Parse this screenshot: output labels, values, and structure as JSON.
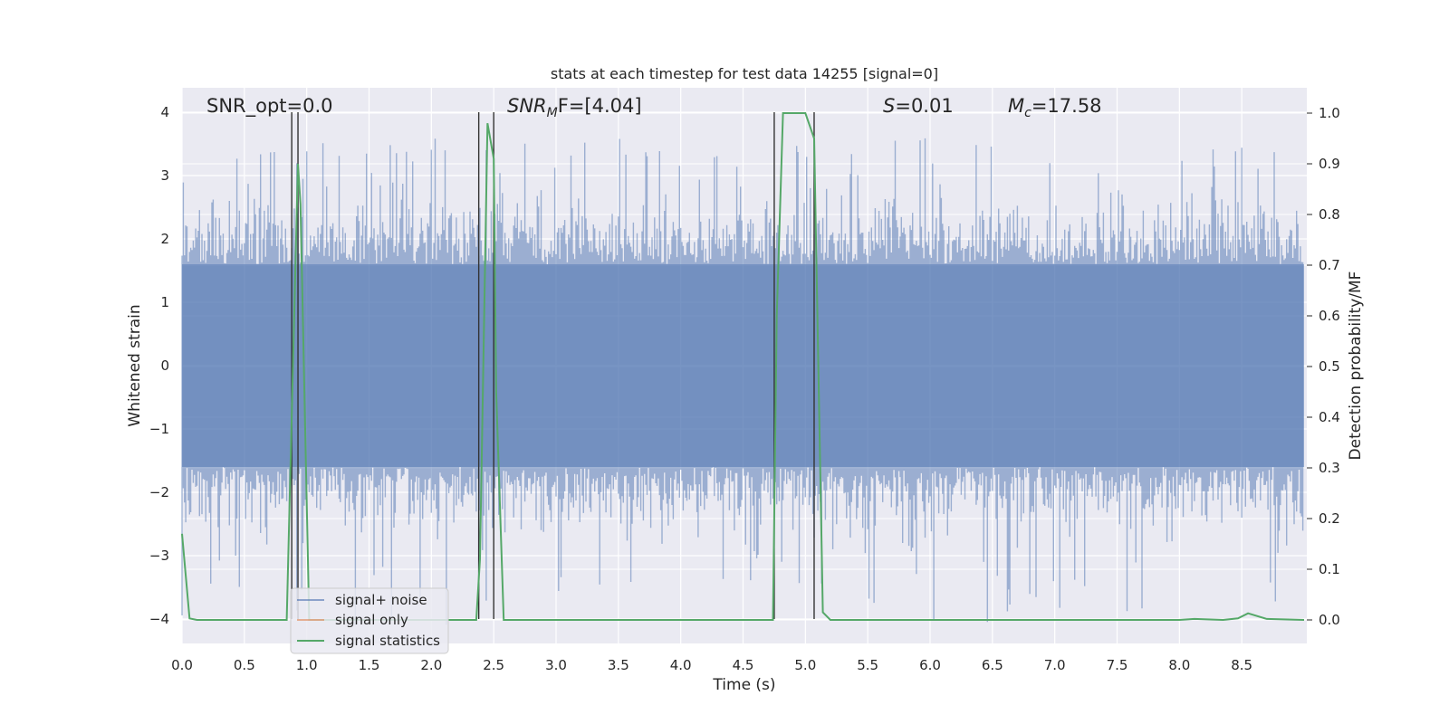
{
  "chart_data": {
    "type": "line",
    "title": "stats at each timestep for test data 14255 [signal=0]",
    "xlabel": "Time (s)",
    "ylabel_left": "Whitened strain",
    "ylabel_right": "Detection probability/MF",
    "xlim": [
      0,
      9.0
    ],
    "ylim_left": [
      -4.4,
      4.4
    ],
    "ylim_right": [
      -0.05,
      1.05
    ],
    "grid": true,
    "legend_position": "lower-left",
    "x_ticks": [
      "0.0",
      "0.5",
      "1.0",
      "1.5",
      "2.0",
      "2.5",
      "3.0",
      "3.5",
      "4.0",
      "4.5",
      "5.0",
      "5.5",
      "6.0",
      "6.5",
      "7.0",
      "7.5",
      "8.0",
      "8.5"
    ],
    "y_ticks_left": [
      "4",
      "3",
      "2",
      "1",
      "0",
      "−1",
      "−2",
      "−3",
      "−4"
    ],
    "y_ticks_right": [
      "1.0",
      "0.9",
      "0.8",
      "0.7",
      "0.6",
      "0.5",
      "0.4",
      "0.3",
      "0.2",
      "0.1",
      "0.0"
    ],
    "annotations": {
      "snr_opt": "SNR_opt=0.0",
      "snr_mf_main": "SNR",
      "snr_mf_sub": "M",
      "snr_mf_rest": "F=[4.04]",
      "s_label": "S",
      "s_value": "=0.01",
      "mc_label": "M",
      "mc_sub": "c",
      "mc_value": "=17.58"
    },
    "legend": [
      "signal+ noise",
      "signal only",
      "signal statistics"
    ],
    "colors": {
      "signal_noise": "#4c72b0",
      "signal_only": "#dd8452",
      "signal_statistics": "#55a868",
      "markers": "#333333",
      "background": "#eaeaf2"
    },
    "series": [
      {
        "name": "signal statistics",
        "axis": "right",
        "x": [
          0.0,
          0.06,
          0.12,
          0.84,
          0.93,
          0.95,
          1.02,
          2.36,
          2.39,
          2.45,
          2.5,
          2.52,
          2.58,
          4.74,
          4.77,
          4.82,
          5.0,
          5.07,
          5.14,
          5.2,
          8.0,
          8.12,
          8.35,
          8.47,
          8.55,
          8.7,
          9.0
        ],
        "y": [
          0.17,
          0.003,
          0.0,
          0.0,
          0.9,
          0.82,
          0.0,
          0.0,
          0.12,
          0.98,
          0.91,
          0.45,
          0.0,
          0.0,
          0.6,
          1.0,
          1.0,
          0.95,
          0.015,
          0.0,
          0.0,
          0.002,
          0.0,
          0.003,
          0.013,
          0.002,
          0.0
        ]
      },
      {
        "name": "signal+ noise",
        "axis": "left",
        "x_range": [
          0,
          9.0
        ],
        "typical_amplitude": 1.6,
        "peak_amplitude": 3.3
      },
      {
        "name": "signal only",
        "axis": "left",
        "x": [
          0.9,
          1.1
        ],
        "y": [
          0,
          0
        ]
      }
    ],
    "vertical_markers": [
      0.88,
      0.93,
      2.38,
      2.5,
      4.75,
      5.07
    ]
  }
}
